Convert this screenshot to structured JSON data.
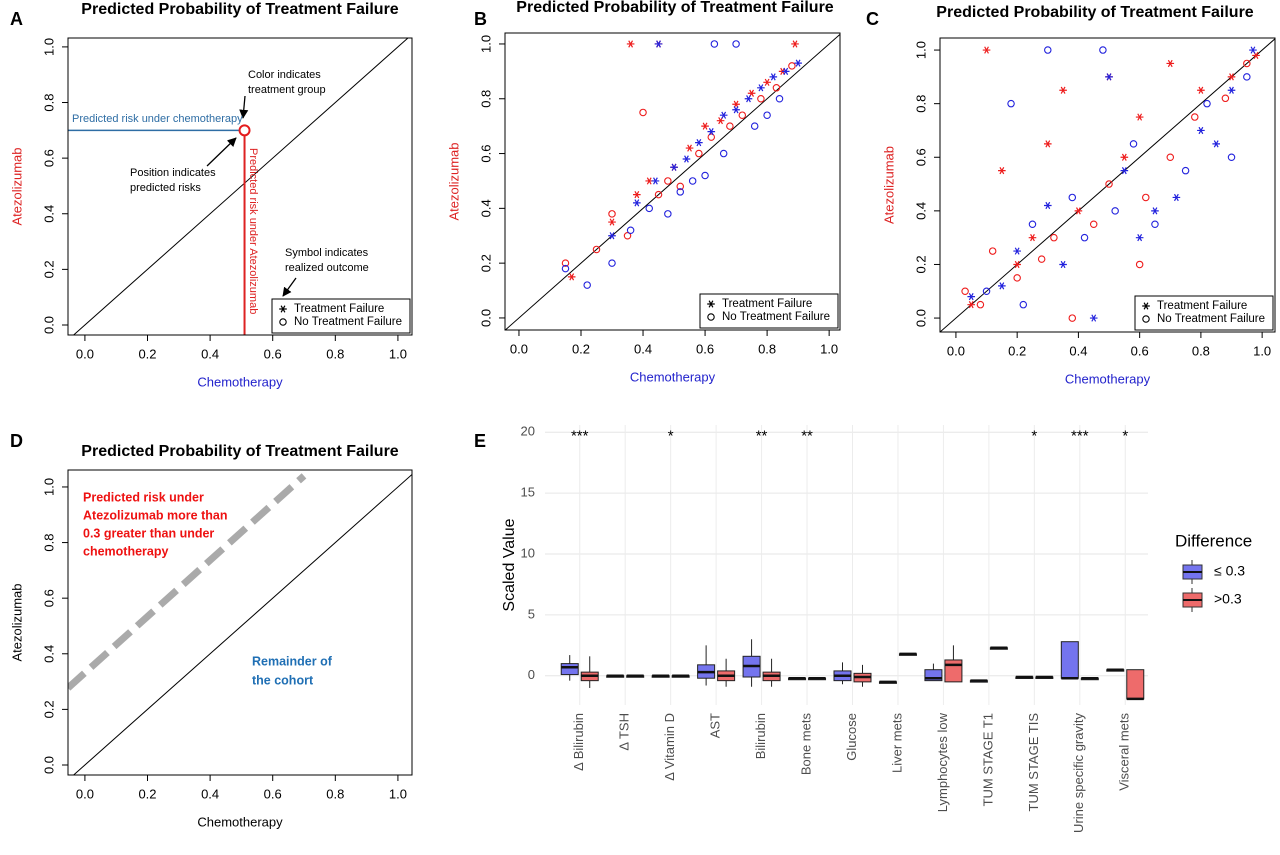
{
  "chart_data": [
    {
      "panel": "A",
      "type": "scatter",
      "title": "Predicted Probability of Treatment Failure",
      "xlabel": "Chemotherapy",
      "ylabel": "Atezolizumab",
      "xlabel_color": "#2222cc",
      "ylabel_color": "#dd2222",
      "xlim": [
        -0.054,
        1.045
      ],
      "ylim": [
        -0.036,
        1.032
      ],
      "xticks": [
        {
          "value": 0,
          "label": "0.0"
        },
        0.2,
        0.4,
        0.6,
        0.8,
        {
          "value": 1,
          "label": "1.0"
        }
      ],
      "yticks": [
        {
          "value": 0,
          "label": "0.0"
        },
        0.2,
        0.4,
        0.6,
        0.8,
        {
          "value": 1,
          "label": "1.0"
        }
      ],
      "diagonal": true,
      "guides": true,
      "legend_position": "bottom-right",
      "legend": [
        "Treatment Failure",
        "No Treatment Failure"
      ],
      "series": [
        {
          "color": "#e41a1c",
          "marker": "circle",
          "x": [
            0.51
          ],
          "y": [
            0.7
          ]
        }
      ],
      "annotations": [
        {
          "text": [
            "Predicted risk under chemotherapy"
          ],
          "color": "#2e6da4"
        },
        {
          "text": [
            "Predicted risk under Atezolizumab"
          ],
          "color": "#dd2222"
        },
        {
          "text": [
            "Color indicates",
            "treatment group"
          ],
          "color": "#000000"
        },
        {
          "text": [
            "Position indicates",
            "predicted risks"
          ],
          "color": "#000000"
        },
        {
          "text": [
            "Symbol indicates",
            "realized outcome"
          ],
          "color": "#000000"
        }
      ]
    },
    {
      "panel": "B",
      "type": "scatter",
      "title": "Predicted Probability of Treatment Failure",
      "xlabel": "Chemotherapy",
      "ylabel": "Atezolizumab",
      "xlabel_color": "#2222cc",
      "ylabel_color": "#dd2222",
      "xlim": [
        -0.045,
        1.035
      ],
      "ylim": [
        -0.044,
        1.04
      ],
      "xticks": [
        {
          "value": 0,
          "label": "0.0"
        },
        0.2,
        0.4,
        0.6,
        0.8,
        {
          "value": 1,
          "label": "1.0"
        }
      ],
      "yticks": [
        {
          "value": 0,
          "label": "0.0"
        },
        0.2,
        0.4,
        0.6,
        0.8,
        {
          "value": 1,
          "label": "1.0"
        }
      ],
      "diagonal": true,
      "legend_position": "bottom-right",
      "legend": [
        "Treatment Failure",
        "No Treatment Failure"
      ],
      "series": [
        {
          "color": "#ee1c1c",
          "marker": "asterisk",
          "x": [
            0.17,
            0.3,
            0.36,
            0.38,
            0.42,
            0.45,
            0.5,
            0.55,
            0.6,
            0.65,
            0.7,
            0.75,
            0.8,
            0.85,
            0.89
          ],
          "y": [
            0.15,
            0.35,
            1.0,
            0.45,
            0.5,
            1.0,
            0.55,
            0.62,
            0.7,
            0.72,
            0.78,
            0.82,
            0.86,
            0.9,
            1.0
          ]
        },
        {
          "color": "#ee1c1c",
          "marker": "circle",
          "x": [
            0.15,
            0.25,
            0.3,
            0.35,
            0.4,
            0.45,
            0.48,
            0.52,
            0.58,
            0.62,
            0.68,
            0.72,
            0.78,
            0.83,
            0.88
          ],
          "y": [
            0.2,
            0.25,
            0.38,
            0.3,
            0.75,
            0.45,
            0.5,
            0.48,
            0.6,
            0.66,
            0.7,
            0.74,
            0.8,
            0.84,
            0.92
          ]
        },
        {
          "color": "#2222dd",
          "marker": "asterisk",
          "x": [
            0.3,
            0.38,
            0.44,
            0.5,
            0.54,
            0.58,
            0.62,
            0.66,
            0.7,
            0.74,
            0.78,
            0.82,
            0.86,
            0.9,
            0.45
          ],
          "y": [
            0.3,
            0.42,
            0.5,
            0.55,
            0.58,
            0.64,
            0.68,
            0.74,
            0.76,
            0.8,
            0.84,
            0.88,
            0.9,
            0.93,
            1.0
          ]
        },
        {
          "color": "#2222dd",
          "marker": "circle",
          "x": [
            0.15,
            0.22,
            0.3,
            0.36,
            0.42,
            0.48,
            0.52,
            0.56,
            0.6,
            0.66,
            0.7,
            0.76,
            0.8,
            0.84,
            0.63
          ],
          "y": [
            0.18,
            0.12,
            0.2,
            0.32,
            0.4,
            0.38,
            0.46,
            0.5,
            0.52,
            0.6,
            1.0,
            0.7,
            0.74,
            0.8,
            1.0
          ]
        }
      ]
    },
    {
      "panel": "C",
      "type": "scatter",
      "title": "Predicted Probability of Treatment Failure",
      "xlabel": "Chemotherapy",
      "ylabel": "Atezolizumab",
      "xlabel_color": "#2222cc",
      "ylabel_color": "#dd2222",
      "xlim": [
        -0.052,
        1.042
      ],
      "ylim": [
        -0.052,
        1.045
      ],
      "xticks": [
        {
          "value": 0,
          "label": "0.0"
        },
        0.2,
        0.4,
        0.6,
        0.8,
        {
          "value": 1,
          "label": "1.0"
        }
      ],
      "yticks": [
        {
          "value": 0,
          "label": "0.0"
        },
        0.2,
        0.4,
        0.6,
        0.8,
        {
          "value": 1,
          "label": "1.0"
        }
      ],
      "diagonal": true,
      "legend_position": "bottom-right",
      "legend": [
        "Treatment Failure",
        "No Treatment Failure"
      ],
      "series": [
        {
          "color": "#ee1c1c",
          "marker": "asterisk",
          "x": [
            0.05,
            0.1,
            0.15,
            0.2,
            0.25,
            0.3,
            0.35,
            0.4,
            0.5,
            0.55,
            0.6,
            0.7,
            0.8,
            0.9,
            0.98
          ],
          "y": [
            0.05,
            1.0,
            0.55,
            0.2,
            0.3,
            0.65,
            0.85,
            0.4,
            0.9,
            0.6,
            0.75,
            0.95,
            0.85,
            0.9,
            0.98
          ]
        },
        {
          "color": "#ee1c1c",
          "marker": "circle",
          "x": [
            0.03,
            0.08,
            0.12,
            0.2,
            0.28,
            0.32,
            0.38,
            0.45,
            0.5,
            0.6,
            0.62,
            0.7,
            0.78,
            0.88,
            0.95
          ],
          "y": [
            0.1,
            0.05,
            0.25,
            0.15,
            0.22,
            0.3,
            0.0,
            0.35,
            0.5,
            0.2,
            0.45,
            0.6,
            0.75,
            0.82,
            0.95
          ]
        },
        {
          "color": "#2222dd",
          "marker": "asterisk",
          "x": [
            0.05,
            0.15,
            0.2,
            0.3,
            0.35,
            0.45,
            0.5,
            0.55,
            0.6,
            0.65,
            0.72,
            0.8,
            0.85,
            0.9,
            0.97
          ],
          "y": [
            0.08,
            0.12,
            0.25,
            0.42,
            0.2,
            0.0,
            0.9,
            0.55,
            0.3,
            0.4,
            0.45,
            0.7,
            0.65,
            0.85,
            1.0
          ]
        },
        {
          "color": "#2222dd",
          "marker": "circle",
          "x": [
            0.1,
            0.18,
            0.22,
            0.25,
            0.3,
            0.38,
            0.42,
            0.48,
            0.52,
            0.58,
            0.65,
            0.75,
            0.82,
            0.9,
            0.95
          ],
          "y": [
            0.1,
            0.8,
            0.05,
            0.35,
            1.0,
            0.45,
            0.3,
            1.0,
            0.4,
            0.65,
            0.35,
            0.55,
            0.8,
            0.6,
            0.9
          ]
        }
      ]
    },
    {
      "panel": "D",
      "type": "line",
      "title": "Predicted Probability of Treatment Failure",
      "xlabel": "Chemotherapy",
      "ylabel": "Atezolizumab",
      "xlabel_color": "#000000",
      "ylabel_color": "#000000",
      "xlim": [
        -0.054,
        1.045
      ],
      "ylim": [
        -0.036,
        1.061
      ],
      "xticks": [
        {
          "value": 0,
          "label": "0.0"
        },
        0.2,
        0.4,
        0.6,
        0.8,
        {
          "value": 1,
          "label": "1.0"
        }
      ],
      "yticks": [
        {
          "value": 0,
          "label": "0.0"
        },
        0.2,
        0.4,
        0.6,
        0.8,
        {
          "value": 1,
          "label": "1.0"
        }
      ],
      "diagonal": true,
      "series": [
        {
          "color": "#aaaaaa",
          "dashed": true,
          "x": [
            -0.054,
            0.7
          ],
          "y": [
            0.277,
            1.04
          ]
        }
      ],
      "annotations": [
        {
          "text": [
            "Predicted risk  under",
            "Atezolizumab more than",
            "0.3 greater than under",
            "chemotherapy"
          ],
          "color": "#ee1111"
        },
        {
          "text": [
            "Remainder of",
            "the cohort"
          ],
          "color": "#1f6fb4"
        }
      ]
    },
    {
      "panel": "E",
      "type": "box",
      "ylabel": "Scaled Value",
      "legend_title": "Difference",
      "ylim": [
        -2.4,
        20.6
      ],
      "yticks": [
        0,
        5,
        10,
        15,
        20
      ],
      "grid": true,
      "categories": [
        "Δ Bilirubin",
        "Δ TSH",
        "Δ Vitamin D",
        "AST",
        "Bilirubin",
        "Bone mets",
        "Glucose",
        "Liver mets",
        "Lymphocytes low",
        "TUM STAGE T1",
        "TUM STAGE TIS",
        "Urine specific gravity",
        "Visceral mets"
      ],
      "significance": [
        "***",
        null,
        "*",
        null,
        "**",
        "**",
        null,
        null,
        null,
        null,
        "*",
        "***",
        "*"
      ],
      "series": [
        {
          "name": "≤ 0.3",
          "color": "#7474ee",
          "low": [
            -0.4,
            -0.1,
            0,
            -0.8,
            -0.9,
            -0.2,
            -0.7,
            -0.5,
            -0.4,
            -0.4,
            -0.1,
            -0.2,
            0.5
          ],
          "q1": [
            0.1,
            0,
            0,
            -0.2,
            -0.1,
            -0.2,
            -0.4,
            -0.5,
            -0.4,
            -0.4,
            -0.1,
            -0.2,
            0.5
          ],
          "median": [
            0.7,
            0,
            0,
            0.3,
            0.8,
            -0.2,
            0,
            -0.5,
            -0.2,
            -0.4,
            -0.1,
            -0.2,
            0.5
          ],
          "q3": [
            1.0,
            0,
            0,
            0.9,
            1.6,
            -0.2,
            0.4,
            -0.5,
            0.5,
            -0.4,
            -0.1,
            2.8,
            0.5
          ],
          "high": [
            1.7,
            0.1,
            0,
            2.5,
            3.0,
            -0.2,
            1.1,
            -0.5,
            1.0,
            -0.4,
            -0.1,
            2.8,
            0.5
          ]
        },
        {
          "name": ">0.3",
          "color": "#ee6b6b",
          "low": [
            -1.0,
            0,
            0,
            -0.9,
            -0.9,
            -0.2,
            -0.9,
            1.8,
            -0.5,
            2.3,
            -0.1,
            -0.2,
            -1.9
          ],
          "q1": [
            -0.4,
            0,
            0,
            -0.4,
            -0.4,
            -0.2,
            -0.5,
            1.8,
            -0.5,
            2.3,
            -0.1,
            -0.2,
            -1.9
          ],
          "median": [
            0,
            0,
            0,
            0,
            0,
            -0.2,
            -0.1,
            1.8,
            0.9,
            2.3,
            -0.1,
            -0.2,
            -1.9
          ],
          "q3": [
            0.3,
            0,
            0,
            0.4,
            0.3,
            -0.2,
            0.2,
            1.8,
            1.3,
            2.3,
            -0.1,
            -0.2,
            0.5
          ],
          "high": [
            1.6,
            0,
            0,
            1.4,
            1.4,
            -0.2,
            0.9,
            1.8,
            2.5,
            2.3,
            -0.1,
            -0.2,
            0.5
          ]
        }
      ]
    }
  ]
}
